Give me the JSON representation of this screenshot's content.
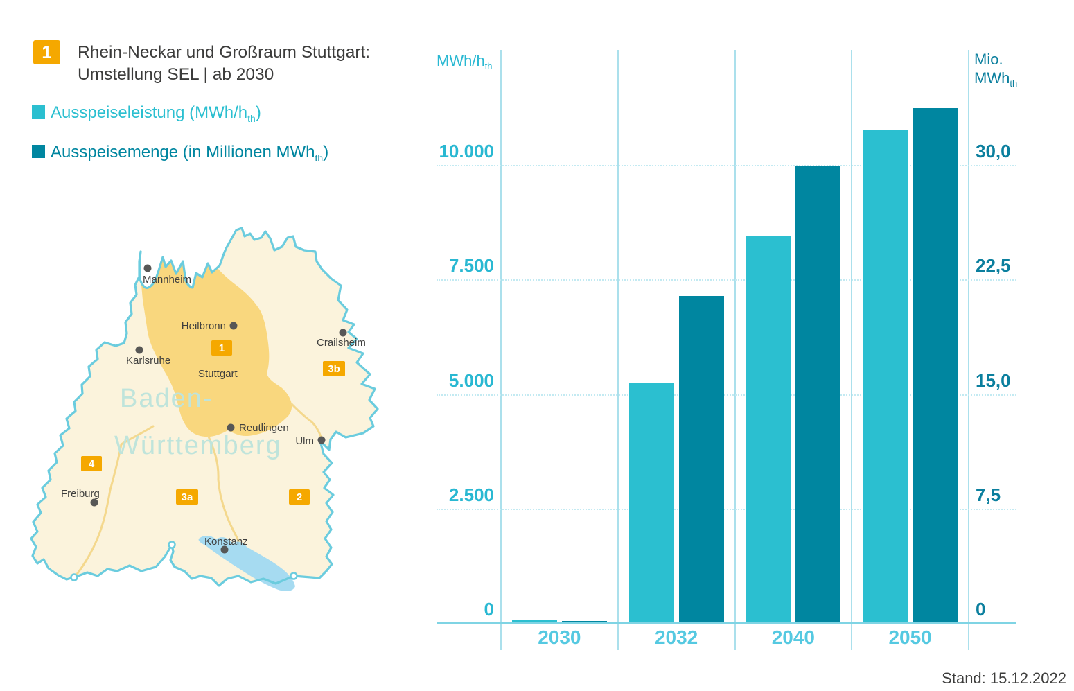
{
  "colors": {
    "series_light": "#2BBFD0",
    "series_dark": "#0086A0",
    "axis_light_blue": "#29B8D2",
    "axis_dark_teal": "#0B7F9E",
    "year_label_blue": "#55C9E1",
    "accent_orange": "#F5A800",
    "grid_blue": "#C3EAF2",
    "baseline_blue": "#7FD4E4",
    "map_outline": "#6BCCDE",
    "map_fill": "#FBF3DC",
    "map_region1_fill": "#F9D77E",
    "map_inner_border": "#F4D88D",
    "map_lake": "#A6DBF1",
    "text_dark": "#3C3C3B"
  },
  "legend": {
    "badge": "1",
    "title_line1": "Rhein-Neckar und Großraum Stuttgart:",
    "title_line2": "Umstellung SEL | ab 2030",
    "items": [
      {
        "pre": "Ausspeiseleistung (MWh/h",
        "sub": "th",
        "post": ")",
        "color": "#2BBFD0"
      },
      {
        "pre": "Ausspeisemenge (in Millionen MWh",
        "sub": "th",
        "post": ")",
        "color": "#0086A0"
      }
    ]
  },
  "map": {
    "state_line1": "Baden-",
    "state_line2": "Württemberg",
    "cities": {
      "mannheim": "Mannheim",
      "heilbronn": "Heilbronn",
      "karlsruhe": "Karlsruhe",
      "stuttgart": "Stuttgart",
      "crailsheim": "Crailsheim",
      "reutlingen": "Reutlingen",
      "ulm": "Ulm",
      "freiburg": "Freiburg",
      "konstanz": "Konstanz"
    },
    "badges": {
      "b1": "1",
      "b2": "2",
      "b3a": "3a",
      "b3b": "3b",
      "b4": "4"
    }
  },
  "chart_data": {
    "type": "bar",
    "categories": [
      "2030",
      "2032",
      "2040",
      "2050"
    ],
    "series": [
      {
        "name": "Ausspeiseleistung (MWh/hth)",
        "axis": "left",
        "color": "#2BBFD0",
        "values": [
          60,
          5250,
          8450,
          10750
        ]
      },
      {
        "name": "Ausspeisemenge (in Millionen MWhth)",
        "axis": "right",
        "color": "#0086A0",
        "values": [
          0.15,
          21.4,
          29.9,
          33.7
        ]
      }
    ],
    "left_axis": {
      "title": "MWh/h",
      "title_sub": "th",
      "ticks": [
        "0",
        "2.500",
        "5.000",
        "7.500",
        "10.000"
      ],
      "max": 10000
    },
    "right_axis": {
      "title_line1": "Mio.",
      "title": "MWh",
      "title_sub": "th",
      "ticks": [
        "0",
        "7,5",
        "15,0",
        "22,5",
        "30,0"
      ],
      "max": 30
    },
    "grid": {
      "horizontal": "dotted",
      "vertical": "solid-column-separators"
    },
    "legend_position": "top-left"
  },
  "footer": {
    "stand": "Stand: 15.12.2022"
  }
}
